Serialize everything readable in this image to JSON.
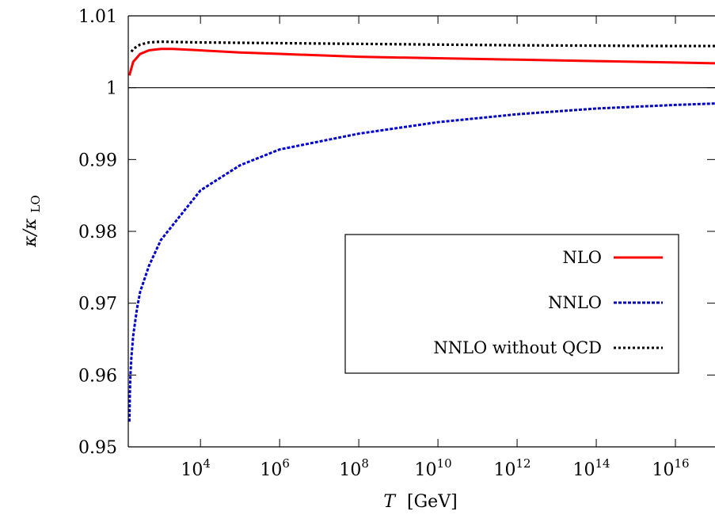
{
  "chart_data": {
    "type": "line",
    "title": "",
    "xlabel": "T",
    "xlabel_unit": "[GeV]",
    "ylabel_main": "κ/κ",
    "ylabel_sub": "LO",
    "x_scale": "log10",
    "xlim": [
      150,
      1e+17
    ],
    "ylim": [
      0.95,
      1.01
    ],
    "x_ticks": [
      {
        "exp": 4,
        "base": "10",
        "sup": "4"
      },
      {
        "exp": 6,
        "base": "10",
        "sup": "6"
      },
      {
        "exp": 8,
        "base": "10",
        "sup": "8"
      },
      {
        "exp": 10,
        "base": "10",
        "sup": "10"
      },
      {
        "exp": 12,
        "base": "10",
        "sup": "12"
      },
      {
        "exp": 14,
        "base": "10",
        "sup": "14"
      },
      {
        "exp": 16,
        "base": "10",
        "sup": "16"
      }
    ],
    "y_ticks": [
      "0.95",
      "0.96",
      "0.97",
      "0.98",
      "0.99",
      "1",
      "1.01"
    ],
    "reference_line_y": 1,
    "grid": false,
    "legend_position": "lower-right",
    "series": [
      {
        "name": "NLO",
        "color": "#ff0000",
        "style": "solid",
        "x": [
          160,
          200,
          300,
          500,
          1000,
          2000,
          10000,
          100000,
          1000000,
          100000000.0,
          10000000000.0,
          1000000000000.0,
          100000000000000.0,
          1e+16,
          1e+17
        ],
        "y": [
          1.0017,
          1.0036,
          1.0047,
          1.0052,
          1.0054,
          1.0054,
          1.0052,
          1.0049,
          1.0047,
          1.0043,
          1.0041,
          1.0039,
          1.0037,
          1.0035,
          1.0034
        ]
      },
      {
        "name": "NNLO",
        "color": "#0000cc",
        "style": "dashed",
        "x": [
          160,
          165,
          170,
          180,
          200,
          250,
          300,
          500,
          1000,
          10000,
          100000,
          1000000,
          100000000.0,
          10000000000.0,
          1000000000000.0,
          100000000000000.0,
          1e+16,
          1e+17
        ],
        "y": [
          0.9535,
          0.9575,
          0.96,
          0.9625,
          0.9655,
          0.9693,
          0.9716,
          0.9752,
          0.9788,
          0.9857,
          0.9892,
          0.9914,
          0.9936,
          0.9952,
          0.9963,
          0.9971,
          0.9976,
          0.9978
        ]
      },
      {
        "name": "NNLO without QCD",
        "color": "#000000",
        "style": "dotted",
        "x": [
          180,
          200,
          300,
          500,
          1000,
          10000,
          100000000.0,
          1000000000000.0,
          1e+16,
          1e+17
        ],
        "y": [
          1.005,
          1.0054,
          1.006,
          1.0063,
          1.0064,
          1.0063,
          1.0061,
          1.0059,
          1.0058,
          1.0058
        ]
      }
    ]
  }
}
